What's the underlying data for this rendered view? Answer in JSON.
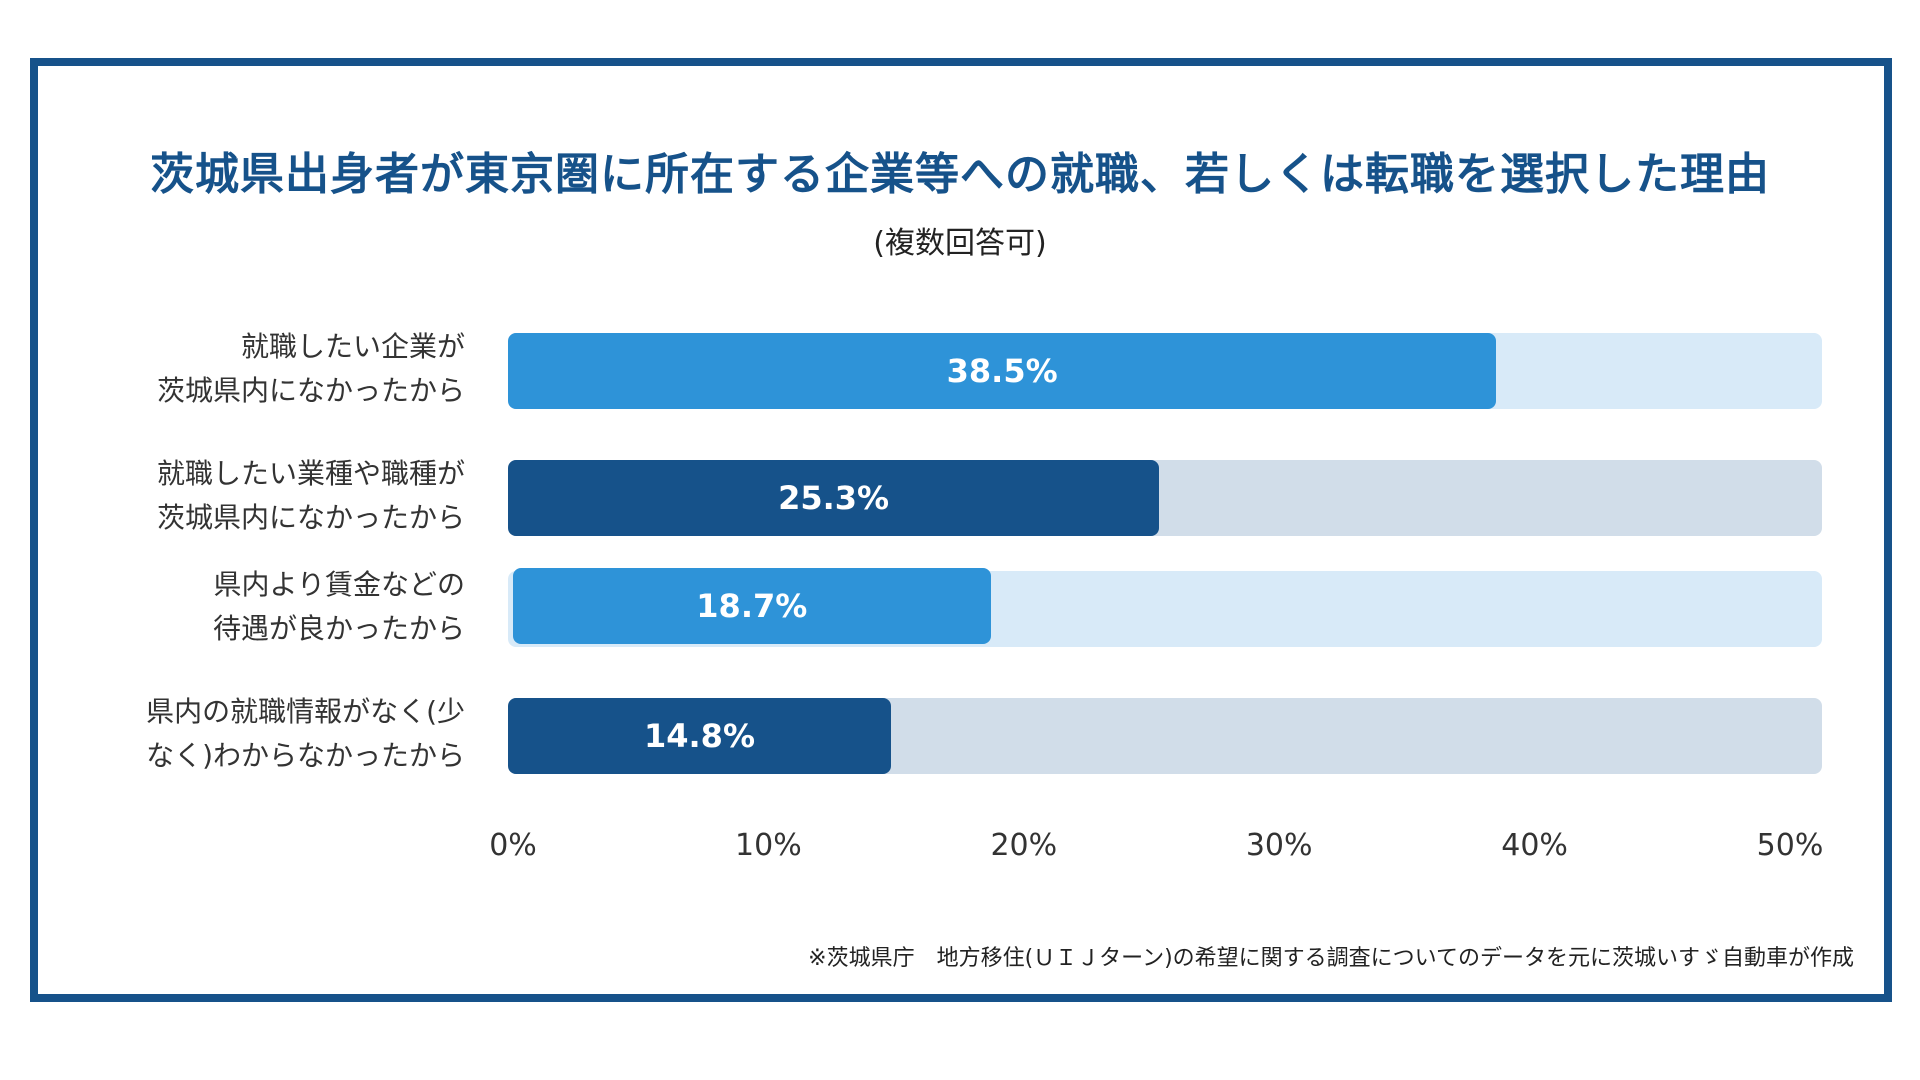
{
  "chart_data": {
    "type": "bar",
    "orientation": "horizontal",
    "title": "茨城県出身者が東京圏に所在する企業等への就職、若しくは転職を選択した理由",
    "subtitle": "(複数回答可)",
    "categories": [
      [
        "就職したい企業が",
        "茨城県内になかったから"
      ],
      [
        "就職したい業種や職種が",
        "茨城県内になかったから"
      ],
      [
        "県内より賃金などの",
        "待遇が良かったから"
      ],
      [
        "県内の就職情報がなく(少",
        "なく)わからなかったから"
      ]
    ],
    "values": [
      38.5,
      25.3,
      18.7,
      14.8
    ],
    "value_labels": [
      "38.5%",
      "25.3%",
      "18.7%",
      "14.8%"
    ],
    "xlim": [
      0,
      50
    ],
    "x_ticks": [
      0,
      10,
      20,
      30,
      40,
      50
    ],
    "x_tick_labels": [
      "0%",
      "10%",
      "20%",
      "30%",
      "40%",
      "50%"
    ],
    "colors": {
      "bar": [
        "#2e93d8",
        "#16528a",
        "#2e93d8",
        "#16528a"
      ],
      "track": [
        "#d8eaf8",
        "#d1dde9",
        "#d8eaf8",
        "#d1dde9"
      ]
    },
    "grid": false,
    "legend": "none"
  },
  "footnote": "※茨城県庁　地方移住(ＵＩＪターン)の希望に関する調査についてのデータを元に茨城いすゞ自動車が作成"
}
